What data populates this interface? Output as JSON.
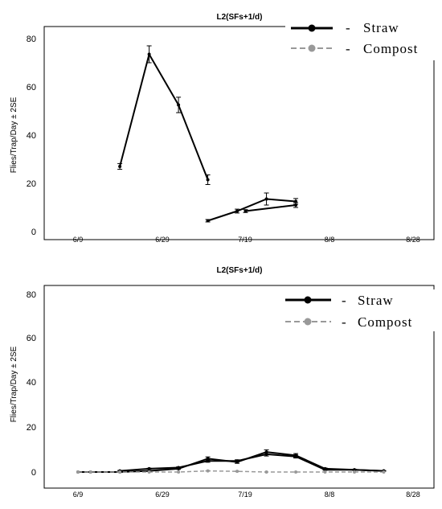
{
  "chart_data": [
    {
      "type": "line",
      "title": "L2(SFs+1/d)",
      "ylabel": "Flies/Trap/Day ± 2SE",
      "xlabel": "",
      "ylim": [
        0,
        80
      ],
      "yticks": [
        "0",
        "20",
        "40",
        "60",
        "80"
      ],
      "x_tick_labels": [
        "6/9",
        "6/29",
        "7/19",
        "8/8",
        "8/28"
      ],
      "legend": {
        "position": "top-right",
        "entries": [
          "Straw",
          "Compost"
        ],
        "dash": "-"
      },
      "series": [
        {
          "name": "Straw",
          "color": "#000000",
          "style": "solid",
          "x": [
            "6/19",
            "6/26",
            "7/3",
            "7/10"
          ],
          "values": [
            27,
            73.5,
            52.5,
            21.5
          ],
          "err": [
            1.2,
            3.5,
            3.2,
            2
          ]
        },
        {
          "name": "Straw",
          "color": "#000000",
          "style": "solid",
          "x": [
            "7/10",
            "7/17",
            "7/24",
            "7/31"
          ],
          "values": [
            4.5,
            8.5,
            13.5,
            12.5
          ],
          "err": [
            0.5,
            0.8,
            2.5,
            1.2
          ]
        },
        {
          "name": "Straw",
          "color": "#000000",
          "style": "solid",
          "x": [
            "7/19",
            "7/31"
          ],
          "values": [
            8.5,
            11
          ],
          "err": [
            0.6,
            1
          ]
        }
      ]
    },
    {
      "type": "line",
      "title": "L2(SFs+1/d)",
      "ylabel": "Flies/Trap/Day ± 2SE",
      "xlabel": "",
      "ylim": [
        0,
        80
      ],
      "yticks": [
        "0",
        "20",
        "40",
        "60",
        "80"
      ],
      "x_tick_labels": [
        "6/9",
        "6/29",
        "7/19",
        "8/8",
        "8/28"
      ],
      "legend": {
        "position": "top-right",
        "entries": [
          "Straw",
          "Compost"
        ],
        "dash": "-"
      },
      "series": [
        {
          "name": "Straw",
          "color": "#000000",
          "style": "solid",
          "x": [
            "6/9",
            "6/12",
            "6/19",
            "6/26",
            "7/3",
            "7/10",
            "7/17",
            "7/24",
            "7/31",
            "8/7",
            "8/14",
            "8/21"
          ],
          "values": [
            0,
            0,
            0,
            0.5,
            1.5,
            6,
            4.5,
            9,
            7.5,
            1.5,
            1,
            0.5
          ],
          "err": [
            0,
            0,
            0,
            0.2,
            0.3,
            0.8,
            0.6,
            1,
            0.8,
            0.3,
            0.2,
            0.1
          ]
        },
        {
          "name": "Straw",
          "color": "#000000",
          "style": "solid",
          "x": [
            "6/19",
            "6/26",
            "7/3",
            "7/10",
            "7/17",
            "7/24",
            "7/31",
            "8/7",
            "8/14",
            "8/21"
          ],
          "values": [
            0.5,
            1.5,
            2,
            5,
            5,
            8,
            7,
            1,
            1,
            0.5
          ],
          "err": [
            0.2,
            0.2,
            0.3,
            0.6,
            0.5,
            0.8,
            0.7,
            0.2,
            0.2,
            0.1
          ]
        },
        {
          "name": "Compost",
          "color": "#999999",
          "style": "dashed",
          "x": [
            "6/9",
            "6/12",
            "6/19",
            "6/26",
            "7/3",
            "7/10",
            "7/17",
            "7/24",
            "7/31",
            "8/7",
            "8/14",
            "8/21"
          ],
          "values": [
            0,
            0,
            0,
            0,
            0,
            0.5,
            0.3,
            0,
            0,
            0,
            0,
            0
          ],
          "err": [
            0,
            0,
            0,
            0,
            0,
            0.1,
            0.1,
            0,
            0,
            0,
            0,
            0
          ]
        }
      ]
    }
  ]
}
